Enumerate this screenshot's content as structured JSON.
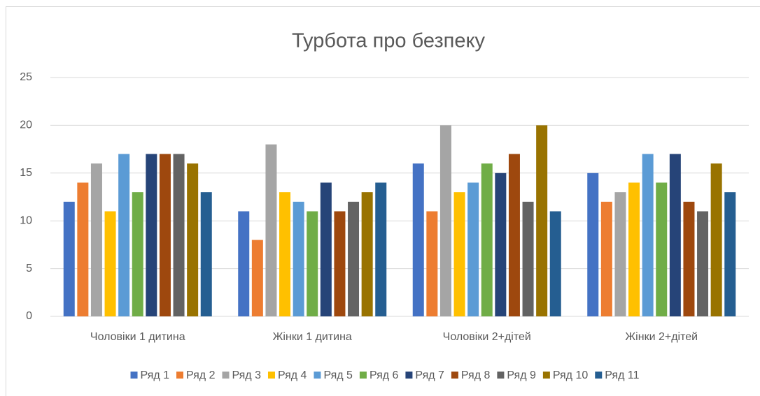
{
  "chart_data": {
    "type": "bar",
    "title": "Турбота про безпеку",
    "categories": [
      "Чоловіки 1 дитина",
      "Жінки 1 дитина",
      "Чоловіки 2+дітей",
      "Жінки 2+дітей"
    ],
    "series": [
      {
        "name": "Ряд 1",
        "color": "#4472c4",
        "values": [
          12,
          11,
          16,
          15
        ]
      },
      {
        "name": "Ряд 2",
        "color": "#ed7d31",
        "values": [
          14,
          8,
          11,
          12
        ]
      },
      {
        "name": "Ряд 3",
        "color": "#a5a5a5",
        "values": [
          16,
          18,
          20,
          13
        ]
      },
      {
        "name": "Ряд 4",
        "color": "#ffc000",
        "values": [
          11,
          13,
          13,
          14
        ]
      },
      {
        "name": "Ряд 5",
        "color": "#5b9bd5",
        "values": [
          17,
          12,
          14,
          17
        ]
      },
      {
        "name": "Ряд 6",
        "color": "#70ad47",
        "values": [
          13,
          11,
          16,
          14
        ]
      },
      {
        "name": "Ряд 7",
        "color": "#264478",
        "values": [
          17,
          14,
          15,
          17
        ]
      },
      {
        "name": "Ряд 8",
        "color": "#9e480e",
        "values": [
          17,
          11,
          17,
          12
        ]
      },
      {
        "name": "Ряд 9",
        "color": "#636363",
        "values": [
          17,
          12,
          12,
          11
        ]
      },
      {
        "name": "Ряд 10",
        "color": "#997300",
        "values": [
          16,
          13,
          20,
          16
        ]
      },
      {
        "name": "Ряд 11",
        "color": "#255e91",
        "values": [
          13,
          14,
          11,
          13
        ]
      }
    ],
    "ylim": [
      0,
      25
    ],
    "yticks": [
      0,
      5,
      10,
      15,
      20,
      25
    ],
    "grid": true,
    "legend": "bottom"
  }
}
